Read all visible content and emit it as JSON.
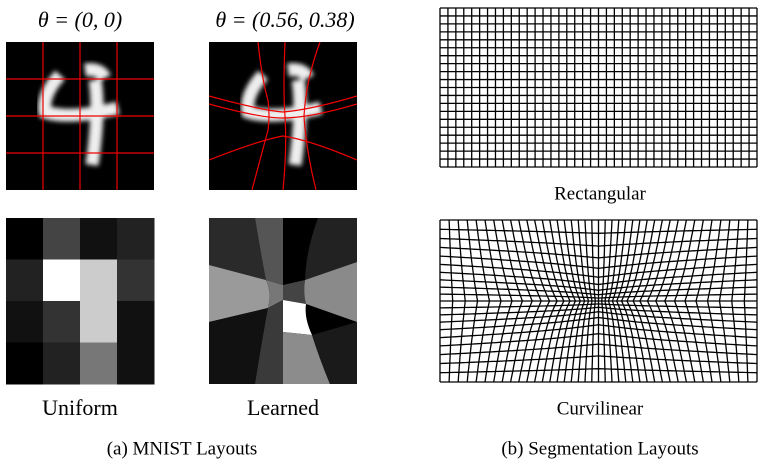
{
  "mnist": {
    "uniform_theta": "θ = (0, 0)",
    "learned_theta": "θ = (0.56, 0.38)",
    "uniform_label": "Uniform",
    "learned_label": "Learned",
    "caption": "(a) MNIST Layouts"
  },
  "segmentation": {
    "rectangular_label": "Rectangular",
    "curvilinear_label": "Curvilinear",
    "caption": "(b) Segmentation Layouts"
  }
}
